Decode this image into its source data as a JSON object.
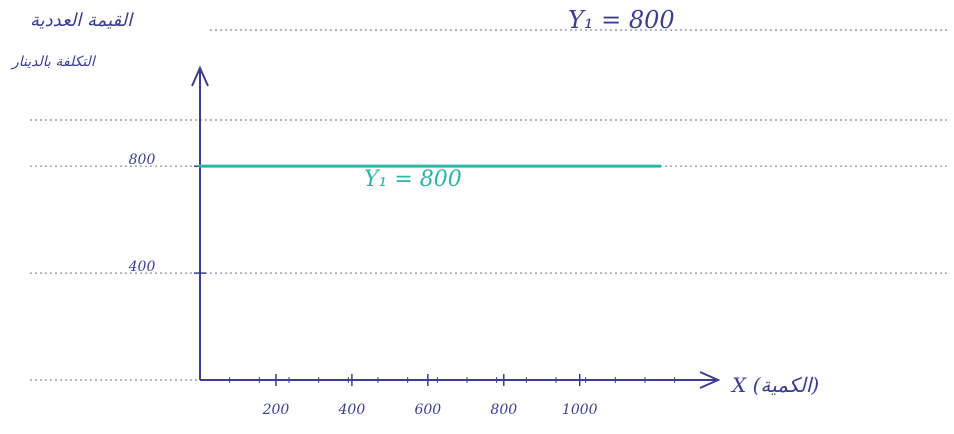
{
  "header": {
    "arabic_label": "القيمة العددية",
    "equation": "Y₁ = 800"
  },
  "chart_data": {
    "type": "line",
    "title": "",
    "xlabel": "X (الكمية)",
    "ylabel": "التكلفة بالدينار",
    "x_ticks": [
      200,
      400,
      600,
      800,
      1000
    ],
    "x_tick_labels": [
      "200",
      "400",
      "600",
      "800",
      "1000"
    ],
    "y_ticks": [
      400,
      800
    ],
    "y_tick_labels": [
      "400",
      "800"
    ],
    "xlim": [
      0,
      1200
    ],
    "ylim": [
      0,
      1100
    ],
    "series": [
      {
        "name": "Y₁ = 800",
        "color": "#2bb5a6",
        "x": [
          0,
          1200
        ],
        "y": [
          800,
          800
        ]
      }
    ],
    "grid": "dotted horizontal",
    "axis_color": "#3d3d8f",
    "label_color": "#3d3d8f"
  }
}
